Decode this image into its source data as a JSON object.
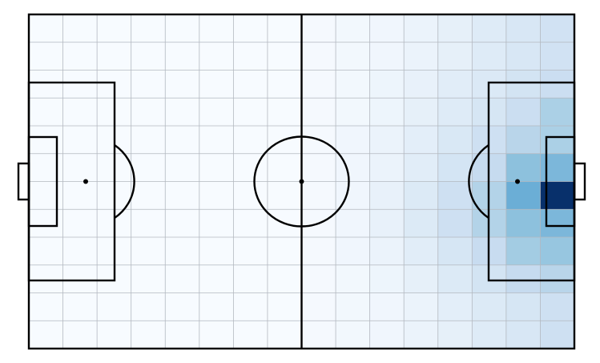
{
  "chart_data": {
    "type": "heatmap",
    "title": "",
    "xlabel": "",
    "ylabel": "",
    "xlim": [
      0,
      16
    ],
    "ylim": [
      0,
      12
    ],
    "grid": true,
    "legend": "none",
    "n_cols": 16,
    "n_rows": 12,
    "value_scale": [
      0,
      1
    ],
    "colormap": "Blues",
    "colors": {
      "line": "#000000",
      "grid": "#b3b8bf",
      "low": "#f7fbff",
      "high": "#08306b"
    },
    "rows": [
      [
        0.0,
        0.0,
        0.0,
        0.0,
        0.0,
        0.0,
        0.0,
        0.0,
        0.01,
        0.02,
        0.03,
        0.05,
        0.07,
        0.1,
        0.14,
        0.18
      ],
      [
        0.0,
        0.0,
        0.0,
        0.0,
        0.0,
        0.0,
        0.0,
        0.0,
        0.01,
        0.02,
        0.03,
        0.05,
        0.07,
        0.1,
        0.14,
        0.18
      ],
      [
        0.0,
        0.0,
        0.0,
        0.0,
        0.0,
        0.0,
        0.0,
        0.0,
        0.01,
        0.02,
        0.04,
        0.06,
        0.09,
        0.12,
        0.17,
        0.22
      ],
      [
        0.0,
        0.0,
        0.0,
        0.0,
        0.0,
        0.0,
        0.0,
        0.0,
        0.01,
        0.02,
        0.04,
        0.07,
        0.1,
        0.15,
        0.22,
        0.35
      ],
      [
        0.0,
        0.0,
        0.0,
        0.0,
        0.0,
        0.0,
        0.0,
        0.0,
        0.01,
        0.03,
        0.05,
        0.08,
        0.13,
        0.2,
        0.3,
        0.35
      ],
      [
        0.0,
        0.0,
        0.0,
        0.0,
        0.0,
        0.0,
        0.0,
        0.0,
        0.01,
        0.03,
        0.05,
        0.09,
        0.16,
        0.25,
        0.45,
        0.5
      ],
      [
        0.0,
        0.0,
        0.0,
        0.0,
        0.0,
        0.0,
        0.0,
        0.0,
        0.01,
        0.03,
        0.06,
        0.11,
        0.2,
        0.32,
        0.55,
        1.0
      ],
      [
        0.0,
        0.0,
        0.0,
        0.0,
        0.0,
        0.0,
        0.0,
        0.0,
        0.01,
        0.03,
        0.06,
        0.11,
        0.2,
        0.32,
        0.45,
        0.5
      ],
      [
        0.0,
        0.0,
        0.0,
        0.0,
        0.0,
        0.0,
        0.0,
        0.0,
        0.01,
        0.03,
        0.05,
        0.09,
        0.15,
        0.24,
        0.38,
        0.42
      ],
      [
        0.0,
        0.0,
        0.0,
        0.0,
        0.0,
        0.0,
        0.0,
        0.0,
        0.01,
        0.02,
        0.04,
        0.07,
        0.11,
        0.17,
        0.25,
        0.3
      ],
      [
        0.0,
        0.0,
        0.0,
        0.0,
        0.0,
        0.0,
        0.0,
        0.0,
        0.01,
        0.02,
        0.03,
        0.05,
        0.08,
        0.11,
        0.15,
        0.2
      ],
      [
        0.0,
        0.0,
        0.0,
        0.0,
        0.0,
        0.0,
        0.0,
        0.0,
        0.01,
        0.02,
        0.03,
        0.05,
        0.07,
        0.1,
        0.14,
        0.2
      ]
    ]
  }
}
